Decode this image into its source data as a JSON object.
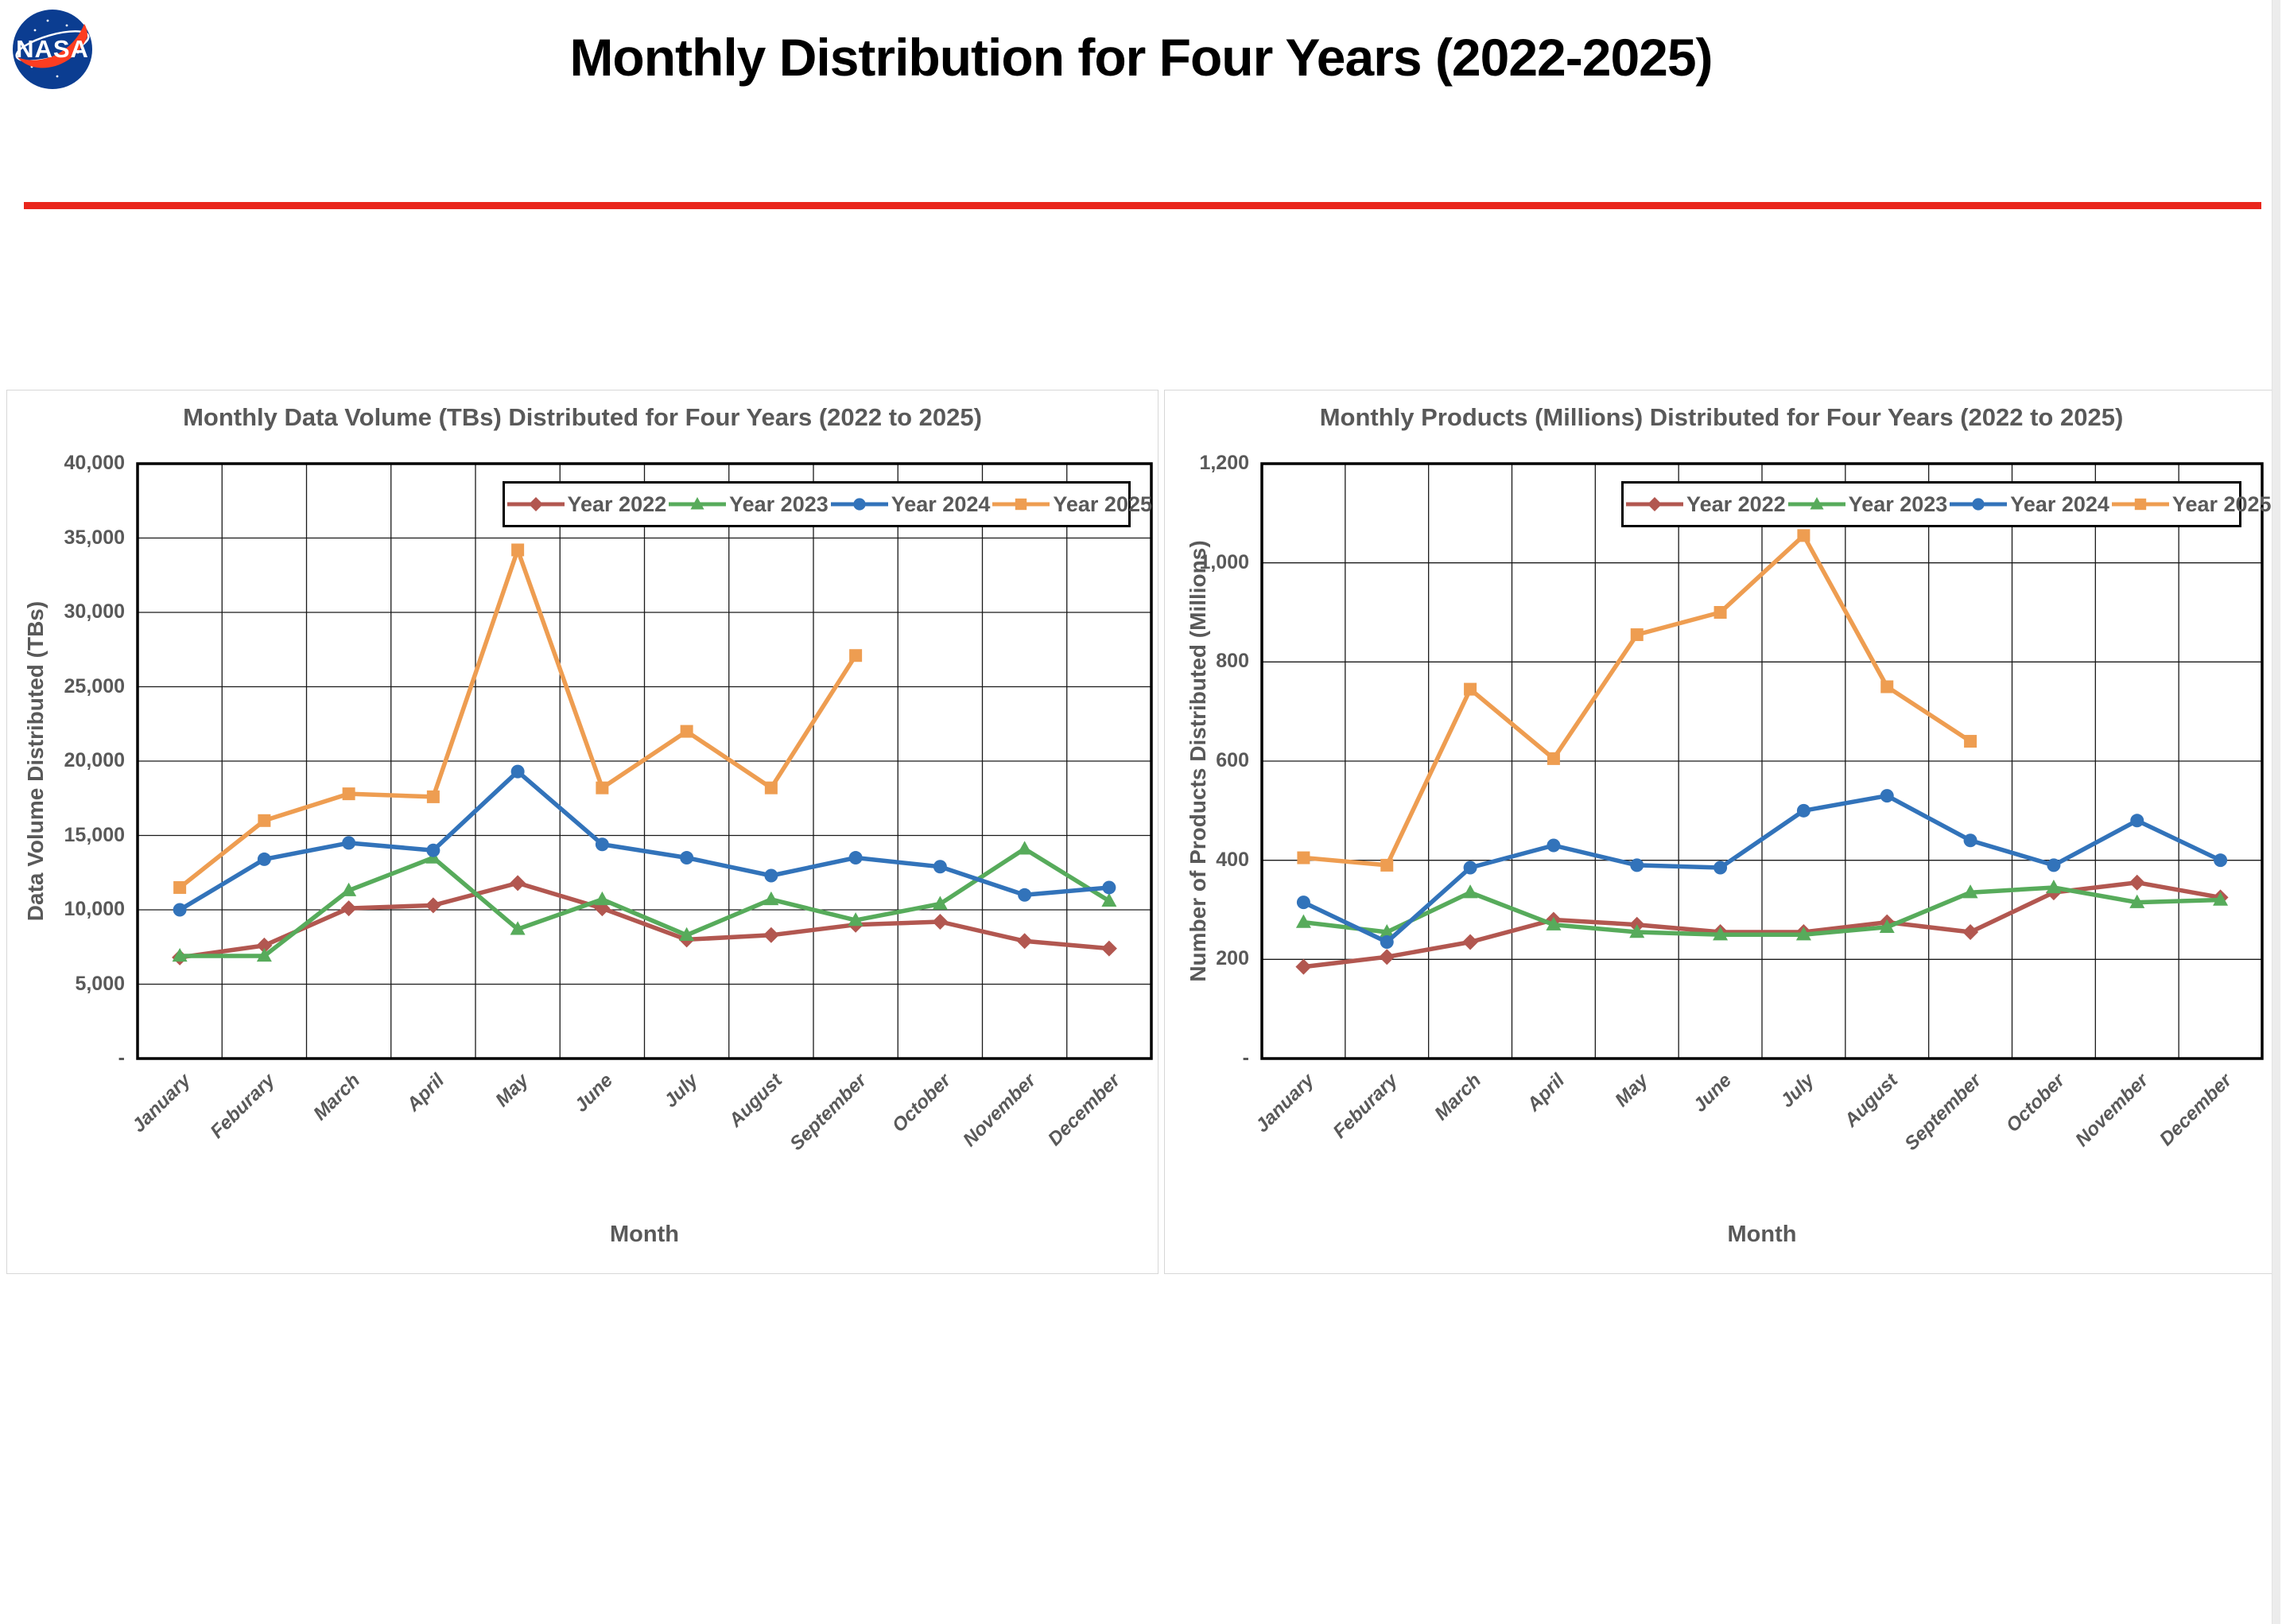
{
  "header": {
    "title": "Monthly Distribution for Four Years (2022-2025)",
    "logo": "nasa-meatball-logo"
  },
  "accent_colors": {
    "rule_red": "#E9261C",
    "logo_blue": "#0B3D91",
    "logo_red": "#FC3D21",
    "chart_text_gray": "#595959",
    "series_2022": "#B25750",
    "series_2023": "#57AB5B",
    "series_2024": "#3273BA",
    "series_2025": "#EE9D51"
  },
  "chart_data": [
    {
      "type": "line",
      "title": "Monthly Data Volume (TBs) Distributed for Four Years (2022 to 2025)",
      "xlabel": "Month",
      "ylabel": "Data Volume Distributed (TBs)",
      "ylim": [
        0,
        40000
      ],
      "ytick_interval": 5000,
      "ytick_labels": [
        "40,000",
        "35,000",
        "30,000",
        "25,000",
        "20,000",
        "15,000",
        "10,000",
        "5,000",
        "-"
      ],
      "grid": true,
      "legend_position": "top-right-inside",
      "categories": [
        "January",
        "Feburary",
        "March",
        "April",
        "May",
        "June",
        "July",
        "August",
        "September",
        "October",
        "November",
        "December"
      ],
      "series": [
        {
          "name": "Year 2022",
          "color": "#B25750",
          "marker": "diamond",
          "values": [
            6800,
            7600,
            10100,
            10300,
            11800,
            10100,
            8000,
            8300,
            9000,
            9200,
            7900,
            7400
          ]
        },
        {
          "name": "Year 2023",
          "color": "#57AB5B",
          "marker": "triangle",
          "values": [
            6900,
            6900,
            11300,
            13500,
            8700,
            10700,
            8300,
            10700,
            9300,
            10400,
            14100,
            10600
          ]
        },
        {
          "name": "Year 2024",
          "color": "#3273BA",
          "marker": "circle",
          "values": [
            10000,
            13400,
            14500,
            14000,
            19300,
            14400,
            13500,
            12300,
            13500,
            12900,
            11000,
            11500
          ]
        },
        {
          "name": "Year 2025",
          "color": "#EE9D51",
          "marker": "square",
          "values": [
            11500,
            16000,
            17800,
            17600,
            34200,
            18200,
            22000,
            18200,
            27100,
            null,
            null,
            null
          ]
        }
      ]
    },
    {
      "type": "line",
      "title": "Monthly Products (Millions) Distributed for Four Years (2022 to 2025)",
      "xlabel": "Month",
      "ylabel": "Number of Products Distributed (Millions)",
      "ylim": [
        0,
        1200
      ],
      "ytick_interval": 200,
      "ytick_labels": [
        "1,200",
        "1,000",
        "800",
        "600",
        "400",
        "200",
        "-"
      ],
      "grid": true,
      "legend_position": "top-right-inside",
      "categories": [
        "January",
        "Feburary",
        "March",
        "April",
        "May",
        "June",
        "July",
        "August",
        "September",
        "October",
        "November",
        "December"
      ],
      "series": [
        {
          "name": "Year 2022",
          "color": "#B25750",
          "marker": "diamond",
          "values": [
            185,
            205,
            235,
            280,
            270,
            255,
            255,
            275,
            255,
            335,
            355,
            325
          ]
        },
        {
          "name": "Year 2023",
          "color": "#57AB5B",
          "marker": "triangle",
          "values": [
            275,
            255,
            335,
            270,
            255,
            250,
            250,
            265,
            335,
            345,
            315,
            320
          ]
        },
        {
          "name": "Year 2024",
          "color": "#3273BA",
          "marker": "circle",
          "values": [
            315,
            235,
            385,
            430,
            390,
            385,
            500,
            530,
            440,
            390,
            480,
            400
          ]
        },
        {
          "name": "Year 2025",
          "color": "#EE9D51",
          "marker": "square",
          "values": [
            405,
            390,
            745,
            605,
            855,
            900,
            1055,
            750,
            640,
            null,
            null,
            null
          ]
        }
      ]
    }
  ]
}
